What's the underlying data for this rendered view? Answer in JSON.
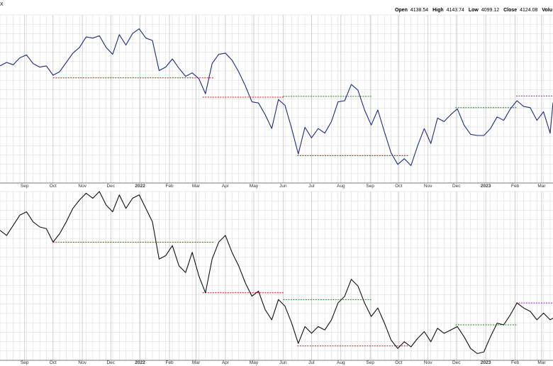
{
  "header": {
    "symbol_fragment": "X",
    "open_label": "Open",
    "open_value": "4138.54",
    "high_label": "High",
    "high_value": "4143.74",
    "low_label": "Low",
    "low_value": "4099.12",
    "close_label": "Close",
    "close_value": "4124.08",
    "volume_label": "Volu"
  },
  "colors": {
    "top_line": "#1f2a80",
    "bottom_line": "#111111",
    "support": "#cc1111",
    "resistance": "#118811",
    "recent_high": "#9922cc",
    "grid": "#d6d6d6",
    "separator": "#7a7a7a"
  },
  "chart_data": [
    {
      "type": "line",
      "x_tick_labels": [
        {
          "label": "Sep",
          "date": "2021-09-01"
        },
        {
          "label": "Oct",
          "date": "2021-10-01"
        },
        {
          "label": "Nov",
          "date": "2021-11-01"
        },
        {
          "label": "Dec",
          "date": "2021-12-01"
        },
        {
          "label": "2022",
          "date": "2022-01-01",
          "bold": true
        },
        {
          "label": "Feb",
          "date": "2022-02-01"
        },
        {
          "label": "Mar",
          "date": "2022-03-01"
        },
        {
          "label": "Apr",
          "date": "2022-04-01"
        },
        {
          "label": "May",
          "date": "2022-05-01"
        },
        {
          "label": "Jun",
          "date": "2022-06-01"
        },
        {
          "label": "Jul",
          "date": "2022-07-01"
        },
        {
          "label": "Aug",
          "date": "2022-08-01"
        },
        {
          "label": "Sep",
          "date": "2022-09-01"
        },
        {
          "label": "Oct",
          "date": "2022-10-01"
        },
        {
          "label": "Nov",
          "date": "2022-11-01"
        },
        {
          "label": "Dec",
          "date": "2022-12-01"
        },
        {
          "label": "2023",
          "date": "2023-01-01",
          "bold": true
        },
        {
          "label": "Feb",
          "date": "2023-02-01"
        },
        {
          "label": "Mar",
          "date": "2023-03-01"
        }
      ],
      "x_range": [
        "2021-08-06",
        "2023-03-13"
      ],
      "ylim": [
        3430,
        4880
      ],
      "grid": true,
      "series": [
        {
          "color_key": "top_line",
          "points": [
            [
              "2021-08-06",
              4440
            ],
            [
              "2021-08-13",
              4470
            ],
            [
              "2021-08-20",
              4450
            ],
            [
              "2021-08-27",
              4510
            ],
            [
              "2021-09-03",
              4535
            ],
            [
              "2021-09-10",
              4460
            ],
            [
              "2021-09-17",
              4430
            ],
            [
              "2021-09-24",
              4440
            ],
            [
              "2021-10-01",
              4360
            ],
            [
              "2021-10-08",
              4390
            ],
            [
              "2021-10-15",
              4470
            ],
            [
              "2021-10-22",
              4550
            ],
            [
              "2021-10-29",
              4600
            ],
            [
              "2021-11-05",
              4690
            ],
            [
              "2021-11-12",
              4680
            ],
            [
              "2021-11-19",
              4700
            ],
            [
              "2021-11-26",
              4600
            ],
            [
              "2021-12-03",
              4540
            ],
            [
              "2021-12-10",
              4710
            ],
            [
              "2021-12-17",
              4620
            ],
            [
              "2021-12-24",
              4720
            ],
            [
              "2021-12-31",
              4760
            ],
            [
              "2022-01-07",
              4680
            ],
            [
              "2022-01-14",
              4660
            ],
            [
              "2022-01-21",
              4400
            ],
            [
              "2022-01-28",
              4430
            ],
            [
              "2022-02-04",
              4500
            ],
            [
              "2022-02-11",
              4420
            ],
            [
              "2022-02-18",
              4350
            ],
            [
              "2022-02-25",
              4380
            ],
            [
              "2022-03-04",
              4330
            ],
            [
              "2022-03-11",
              4200
            ],
            [
              "2022-03-18",
              4460
            ],
            [
              "2022-03-25",
              4540
            ],
            [
              "2022-04-01",
              4550
            ],
            [
              "2022-04-08",
              4490
            ],
            [
              "2022-04-15",
              4390
            ],
            [
              "2022-04-22",
              4270
            ],
            [
              "2022-04-29",
              4130
            ],
            [
              "2022-05-06",
              4120
            ],
            [
              "2022-05-13",
              4020
            ],
            [
              "2022-05-20",
              3900
            ],
            [
              "2022-05-27",
              4150
            ],
            [
              "2022-06-03",
              4100
            ],
            [
              "2022-06-10",
              3900
            ],
            [
              "2022-06-17",
              3680
            ],
            [
              "2022-06-24",
              3910
            ],
            [
              "2022-07-01",
              3820
            ],
            [
              "2022-07-08",
              3900
            ],
            [
              "2022-07-15",
              3860
            ],
            [
              "2022-07-22",
              3960
            ],
            [
              "2022-07-29",
              4130
            ],
            [
              "2022-08-05",
              4140
            ],
            [
              "2022-08-12",
              4280
            ],
            [
              "2022-08-19",
              4230
            ],
            [
              "2022-08-26",
              4060
            ],
            [
              "2022-09-02",
              3930
            ],
            [
              "2022-09-09",
              4060
            ],
            [
              "2022-09-16",
              3870
            ],
            [
              "2022-09-23",
              3690
            ],
            [
              "2022-09-30",
              3590
            ],
            [
              "2022-10-07",
              3640
            ],
            [
              "2022-10-14",
              3580
            ],
            [
              "2022-10-21",
              3750
            ],
            [
              "2022-10-28",
              3900
            ],
            [
              "2022-11-04",
              3770
            ],
            [
              "2022-11-11",
              3990
            ],
            [
              "2022-11-18",
              3960
            ],
            [
              "2022-11-25",
              4020
            ],
            [
              "2022-12-02",
              4070
            ],
            [
              "2022-12-09",
              3930
            ],
            [
              "2022-12-16",
              3850
            ],
            [
              "2022-12-23",
              3840
            ],
            [
              "2022-12-30",
              3840
            ],
            [
              "2023-01-06",
              3900
            ],
            [
              "2023-01-13",
              4000
            ],
            [
              "2023-01-20",
              3970
            ],
            [
              "2023-01-27",
              4070
            ],
            [
              "2023-02-03",
              4140
            ],
            [
              "2023-02-10",
              4090
            ],
            [
              "2023-02-17",
              4080
            ],
            [
              "2023-02-24",
              3970
            ],
            [
              "2023-03-03",
              4045
            ],
            [
              "2023-03-10",
              3860
            ],
            [
              "2023-03-13",
              4124
            ]
          ]
        }
      ],
      "annotation_lines": [
        {
          "color_key": "support",
          "y": 4337,
          "x_from": "2021-10-01",
          "x_to": "2022-03-20"
        },
        {
          "color_key": "support",
          "y": 4170,
          "x_from": "2022-03-08",
          "x_to": "2022-06-02"
        },
        {
          "color_key": "support",
          "y": 3666,
          "x_from": "2022-06-16",
          "x_to": "2022-10-12"
        },
        {
          "color_key": "resistance",
          "y": 4177,
          "x_from": "2022-06-01",
          "x_to": "2022-09-02"
        },
        {
          "color_key": "resistance",
          "y": 4080,
          "x_from": "2022-11-30",
          "x_to": "2023-02-03"
        },
        {
          "color_key": "recent_high",
          "y": 4180,
          "x_from": "2023-02-02",
          "x_to": "2023-03-13"
        }
      ]
    },
    {
      "type": "line",
      "x_tick_labels": [
        {
          "label": "Sep",
          "date": "2021-09-01"
        },
        {
          "label": "Oct",
          "date": "2021-10-01"
        },
        {
          "label": "Nov",
          "date": "2021-11-01"
        },
        {
          "label": "Dec",
          "date": "2021-12-01"
        },
        {
          "label": "2022",
          "date": "2022-01-01",
          "bold": true
        },
        {
          "label": "Feb",
          "date": "2022-02-01"
        },
        {
          "label": "Mar",
          "date": "2022-03-01"
        },
        {
          "label": "Apr",
          "date": "2022-04-01"
        },
        {
          "label": "May",
          "date": "2022-05-01"
        },
        {
          "label": "Jun",
          "date": "2022-06-01"
        },
        {
          "label": "Jul",
          "date": "2022-07-01"
        },
        {
          "label": "Aug",
          "date": "2022-08-01"
        },
        {
          "label": "Sep",
          "date": "2022-09-01"
        },
        {
          "label": "Oct",
          "date": "2022-10-01"
        },
        {
          "label": "Nov",
          "date": "2022-11-01"
        },
        {
          "label": "Dec",
          "date": "2022-12-01"
        },
        {
          "label": "2023",
          "date": "2023-01-01",
          "bold": true
        },
        {
          "label": "Feb",
          "date": "2023-02-01"
        },
        {
          "label": "Mar",
          "date": "2023-03-01"
        }
      ],
      "x_range": [
        "2021-08-06",
        "2023-03-13"
      ],
      "ylim": [
        0,
        100
      ],
      "grid": true,
      "series": [
        {
          "color_key": "bottom_line",
          "points": [
            [
              "2021-08-06",
              77
            ],
            [
              "2021-08-13",
              74
            ],
            [
              "2021-08-20",
              80
            ],
            [
              "2021-08-27",
              86
            ],
            [
              "2021-09-03",
              88
            ],
            [
              "2021-09-10",
              82
            ],
            [
              "2021-09-17",
              79
            ],
            [
              "2021-09-24",
              78
            ],
            [
              "2021-10-01",
              70
            ],
            [
              "2021-10-08",
              75
            ],
            [
              "2021-10-15",
              82
            ],
            [
              "2021-10-22",
              90
            ],
            [
              "2021-10-29",
              95
            ],
            [
              "2021-11-05",
              99
            ],
            [
              "2021-11-12",
              96
            ],
            [
              "2021-11-19",
              100
            ],
            [
              "2021-11-26",
              92
            ],
            [
              "2021-12-03",
              88
            ],
            [
              "2021-12-10",
              98
            ],
            [
              "2021-12-17",
              90
            ],
            [
              "2021-12-24",
              96
            ],
            [
              "2021-12-31",
              98
            ],
            [
              "2022-01-07",
              90
            ],
            [
              "2022-01-14",
              82
            ],
            [
              "2022-01-21",
              60
            ],
            [
              "2022-01-28",
              62
            ],
            [
              "2022-02-04",
              68
            ],
            [
              "2022-02-11",
              56
            ],
            [
              "2022-02-18",
              52
            ],
            [
              "2022-02-25",
              64
            ],
            [
              "2022-03-04",
              50
            ],
            [
              "2022-03-11",
              40
            ],
            [
              "2022-03-18",
              60
            ],
            [
              "2022-03-25",
              70
            ],
            [
              "2022-04-01",
              74
            ],
            [
              "2022-04-08",
              64
            ],
            [
              "2022-04-15",
              56
            ],
            [
              "2022-04-22",
              46
            ],
            [
              "2022-04-29",
              38
            ],
            [
              "2022-05-06",
              41
            ],
            [
              "2022-05-13",
              30
            ],
            [
              "2022-05-20",
              24
            ],
            [
              "2022-05-27",
              36
            ],
            [
              "2022-06-03",
              32
            ],
            [
              "2022-06-10",
              22
            ],
            [
              "2022-06-17",
              10
            ],
            [
              "2022-06-24",
              20
            ],
            [
              "2022-07-01",
              16
            ],
            [
              "2022-07-08",
              20
            ],
            [
              "2022-07-15",
              18
            ],
            [
              "2022-07-22",
              24
            ],
            [
              "2022-07-29",
              34
            ],
            [
              "2022-08-05",
              38
            ],
            [
              "2022-08-12",
              48
            ],
            [
              "2022-08-19",
              44
            ],
            [
              "2022-08-26",
              34
            ],
            [
              "2022-09-02",
              26
            ],
            [
              "2022-09-09",
              31
            ],
            [
              "2022-09-16",
              22
            ],
            [
              "2022-09-23",
              12
            ],
            [
              "2022-09-30",
              7
            ],
            [
              "2022-10-07",
              11
            ],
            [
              "2022-10-14",
              8
            ],
            [
              "2022-10-21",
              13
            ],
            [
              "2022-10-28",
              17
            ],
            [
              "2022-11-04",
              11
            ],
            [
              "2022-11-11",
              19
            ],
            [
              "2022-11-18",
              16
            ],
            [
              "2022-11-25",
              18
            ],
            [
              "2022-12-02",
              20
            ],
            [
              "2022-12-09",
              14
            ],
            [
              "2022-12-16",
              7
            ],
            [
              "2022-12-23",
              4
            ],
            [
              "2022-12-30",
              5
            ],
            [
              "2023-01-06",
              14
            ],
            [
              "2023-01-13",
              22
            ],
            [
              "2023-01-20",
              21
            ],
            [
              "2023-01-27",
              27
            ],
            [
              "2023-02-03",
              34
            ],
            [
              "2023-02-10",
              31
            ],
            [
              "2023-02-17",
              29
            ],
            [
              "2023-02-24",
              24
            ],
            [
              "2023-03-03",
              28
            ],
            [
              "2023-03-10",
              24
            ],
            [
              "2023-03-13",
              25
            ]
          ]
        }
      ],
      "annotation_lines": [
        {
          "color_key": "support",
          "y": 70,
          "x_from": "2021-10-01",
          "x_to": "2022-03-20"
        },
        {
          "color_key": "support",
          "y": 40,
          "x_from": "2022-03-08",
          "x_to": "2022-06-02"
        },
        {
          "color_key": "support",
          "y": 8.5,
          "x_from": "2022-06-16",
          "x_to": "2022-10-12"
        },
        {
          "color_key": "resistance",
          "y": 36,
          "x_from": "2022-06-01",
          "x_to": "2022-09-02"
        },
        {
          "color_key": "resistance",
          "y": 21,
          "x_from": "2022-11-30",
          "x_to": "2023-02-03"
        },
        {
          "color_key": "recent_high",
          "y": 34,
          "x_from": "2023-02-02",
          "x_to": "2023-03-13"
        }
      ]
    }
  ]
}
